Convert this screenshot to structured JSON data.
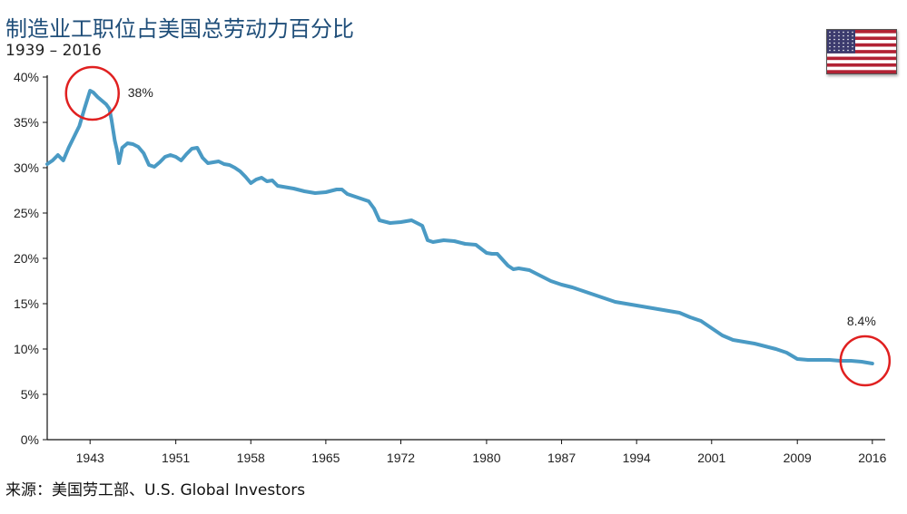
{
  "title": "制造业工职位占美国总劳动力百分比",
  "subtitle": "1939 – 2016",
  "source": "来源：美国劳工部、U.S. Global Investors",
  "flag": {
    "icon": "us-flag-icon",
    "colors": {
      "red": "#b22234",
      "white": "#ffffff",
      "blue": "#3c3b6e"
    }
  },
  "colors": {
    "line": "#4a9ac4",
    "circle": "#e02020",
    "axis": "#111111"
  },
  "chart_data": {
    "type": "line",
    "title": "制造业工职位占美国总劳动力百分比",
    "xlabel": "",
    "ylabel": "",
    "xlim": [
      1939,
      2017.2
    ],
    "ylim": [
      0,
      40
    ],
    "x_ticks": [
      1943,
      1951,
      1958,
      1965,
      1972,
      1980,
      1987,
      1994,
      2001,
      2009,
      2016
    ],
    "y_ticks": [
      0,
      5,
      10,
      15,
      20,
      25,
      30,
      35,
      40
    ],
    "y_tick_labels": [
      "0%",
      "5%",
      "10%",
      "15%",
      "20%",
      "25%",
      "30%",
      "35%",
      "40%"
    ],
    "grid": false,
    "series": [
      {
        "name": "",
        "x": [
          1939,
          1939.5,
          1940,
          1940.5,
          1941,
          1941.5,
          1942,
          1942.5,
          1943,
          1943.3,
          1943.7,
          1944,
          1944.5,
          1944.8,
          1945,
          1945.3,
          1945.5,
          1945.7,
          1946,
          1946.5,
          1947,
          1947.5,
          1948,
          1948.5,
          1949,
          1949.5,
          1950,
          1950.5,
          1951,
          1951.5,
          1952,
          1952.5,
          1953,
          1953.5,
          1954,
          1954.5,
          1955,
          1955.5,
          1956,
          1956.5,
          1957,
          1957.5,
          1958,
          1958.5,
          1959,
          1959.5,
          1960,
          1960.5,
          1961,
          1962,
          1963,
          1964,
          1965,
          1966,
          1966.5,
          1967,
          1968,
          1969,
          1969.5,
          1970,
          1971,
          1972,
          1973,
          1974,
          1974.5,
          1975,
          1976,
          1977,
          1978,
          1979,
          1980,
          1980.5,
          1981,
          1982,
          1982.5,
          1983,
          1984,
          1985,
          1986,
          1987,
          1988,
          1989,
          1990,
          1991,
          1992,
          1993,
          1994,
          1995,
          1996,
          1997,
          1998,
          1999,
          2000,
          2001,
          2002,
          2003,
          2004,
          2005,
          2006,
          2007,
          2008,
          2009,
          2010,
          2011,
          2012,
          2013,
          2014,
          2015,
          2016
        ],
        "values": [
          30.4,
          30.8,
          31.4,
          30.8,
          32.2,
          33.4,
          34.6,
          36.6,
          38.5,
          38.3,
          37.8,
          37.5,
          37.0,
          36.5,
          35.3,
          33.0,
          32.0,
          30.5,
          32.2,
          32.7,
          32.6,
          32.3,
          31.6,
          30.3,
          30.1,
          30.6,
          31.2,
          31.4,
          31.2,
          30.8,
          31.5,
          32.1,
          32.2,
          31.1,
          30.5,
          30.6,
          30.7,
          30.4,
          30.3,
          30.0,
          29.6,
          29.0,
          28.3,
          28.7,
          28.9,
          28.5,
          28.6,
          28.0,
          27.9,
          27.7,
          27.4,
          27.2,
          27.3,
          27.6,
          27.6,
          27.1,
          26.7,
          26.3,
          25.5,
          24.2,
          23.9,
          24.0,
          24.2,
          23.6,
          22.0,
          21.8,
          22.0,
          21.9,
          21.6,
          21.5,
          20.6,
          20.5,
          20.5,
          19.2,
          18.8,
          18.9,
          18.7,
          18.1,
          17.5,
          17.1,
          16.8,
          16.4,
          16.0,
          15.6,
          15.2,
          15.0,
          14.8,
          14.6,
          14.4,
          14.2,
          14.0,
          13.5,
          13.1,
          12.3,
          11.5,
          11.0,
          10.8,
          10.6,
          10.3,
          10.0,
          9.6,
          8.9,
          8.8,
          8.8,
          8.8,
          8.7,
          8.7,
          8.6,
          8.4
        ]
      }
    ],
    "annotations": [
      {
        "text": "38%",
        "x": 1943.3,
        "y": 38.5
      },
      {
        "text": "8.4%",
        "x": 2016,
        "y": 8.4
      }
    ]
  }
}
